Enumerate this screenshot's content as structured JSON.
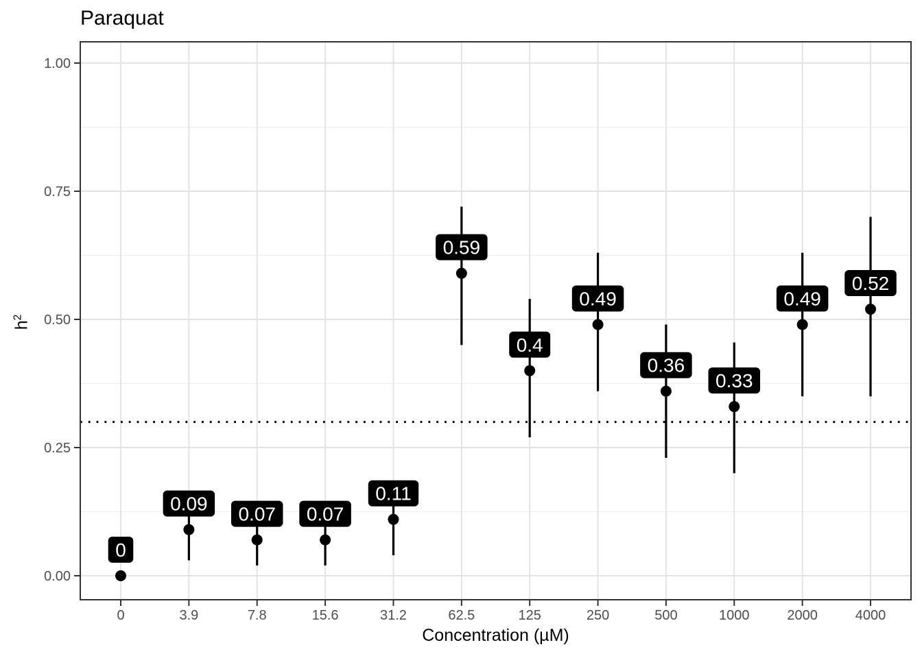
{
  "chart_data": {
    "type": "pointrange-scatter",
    "title": "Paraquat",
    "xlabel": "Concentration (µM)",
    "ylabel": "h²",
    "ylabel_base": "h",
    "ylabel_exponent": "2",
    "categories": [
      "0",
      "3.9",
      "7.8",
      "15.6",
      "31.2",
      "62.5",
      "125",
      "250",
      "500",
      "1000",
      "2000",
      "4000"
    ],
    "points": [
      {
        "x": "0",
        "estimate": 0.0,
        "lower": 0.0,
        "upper": 0.0,
        "label": "0"
      },
      {
        "x": "3.9",
        "estimate": 0.09,
        "lower": 0.03,
        "upper": 0.15,
        "label": "0.09"
      },
      {
        "x": "7.8",
        "estimate": 0.07,
        "lower": 0.02,
        "upper": 0.12,
        "label": "0.07"
      },
      {
        "x": "15.6",
        "estimate": 0.07,
        "lower": 0.02,
        "upper": 0.12,
        "label": "0.07"
      },
      {
        "x": "31.2",
        "estimate": 0.11,
        "lower": 0.04,
        "upper": 0.17,
        "label": "0.11"
      },
      {
        "x": "62.5",
        "estimate": 0.59,
        "lower": 0.45,
        "upper": 0.72,
        "label": "0.59"
      },
      {
        "x": "125",
        "estimate": 0.4,
        "lower": 0.27,
        "upper": 0.54,
        "label": "0.4"
      },
      {
        "x": "250",
        "estimate": 0.49,
        "lower": 0.36,
        "upper": 0.63,
        "label": "0.49"
      },
      {
        "x": "500",
        "estimate": 0.36,
        "lower": 0.23,
        "upper": 0.49,
        "label": "0.36"
      },
      {
        "x": "1000",
        "estimate": 0.33,
        "lower": 0.2,
        "upper": 0.455,
        "label": "0.33"
      },
      {
        "x": "2000",
        "estimate": 0.49,
        "lower": 0.35,
        "upper": 0.63,
        "label": "0.49"
      },
      {
        "x": "4000",
        "estimate": 0.52,
        "lower": 0.35,
        "upper": 0.7,
        "label": "0.52"
      }
    ],
    "y_axis": {
      "limits": [
        0,
        1
      ],
      "major_ticks": [
        {
          "value": 0.0,
          "label": "0.00"
        },
        {
          "value": 0.25,
          "label": "0.25"
        },
        {
          "value": 0.5,
          "label": "0.50"
        },
        {
          "value": 0.75,
          "label": "0.75"
        },
        {
          "value": 1.0,
          "label": "1.00"
        }
      ],
      "minor_ticks": [
        0.125,
        0.375,
        0.625,
        0.875
      ]
    },
    "reference_line": {
      "y": 0.3,
      "style": "dotted",
      "color": "#000000"
    },
    "grid": {
      "horizontal_major": true,
      "horizontal_minor": true,
      "vertical_major": true,
      "vertical_minor": false
    },
    "legend": false,
    "colors": {
      "point": "#000000",
      "errorbar": "#000000",
      "label_bg": "#000000",
      "label_text": "#ffffff",
      "grid_major": "#e3e3e3",
      "grid_minor": "#efefef",
      "panel_border": "#333333",
      "tick_mark": "#333333",
      "tick_text": "#4d4d4d",
      "background": "#ffffff"
    }
  }
}
